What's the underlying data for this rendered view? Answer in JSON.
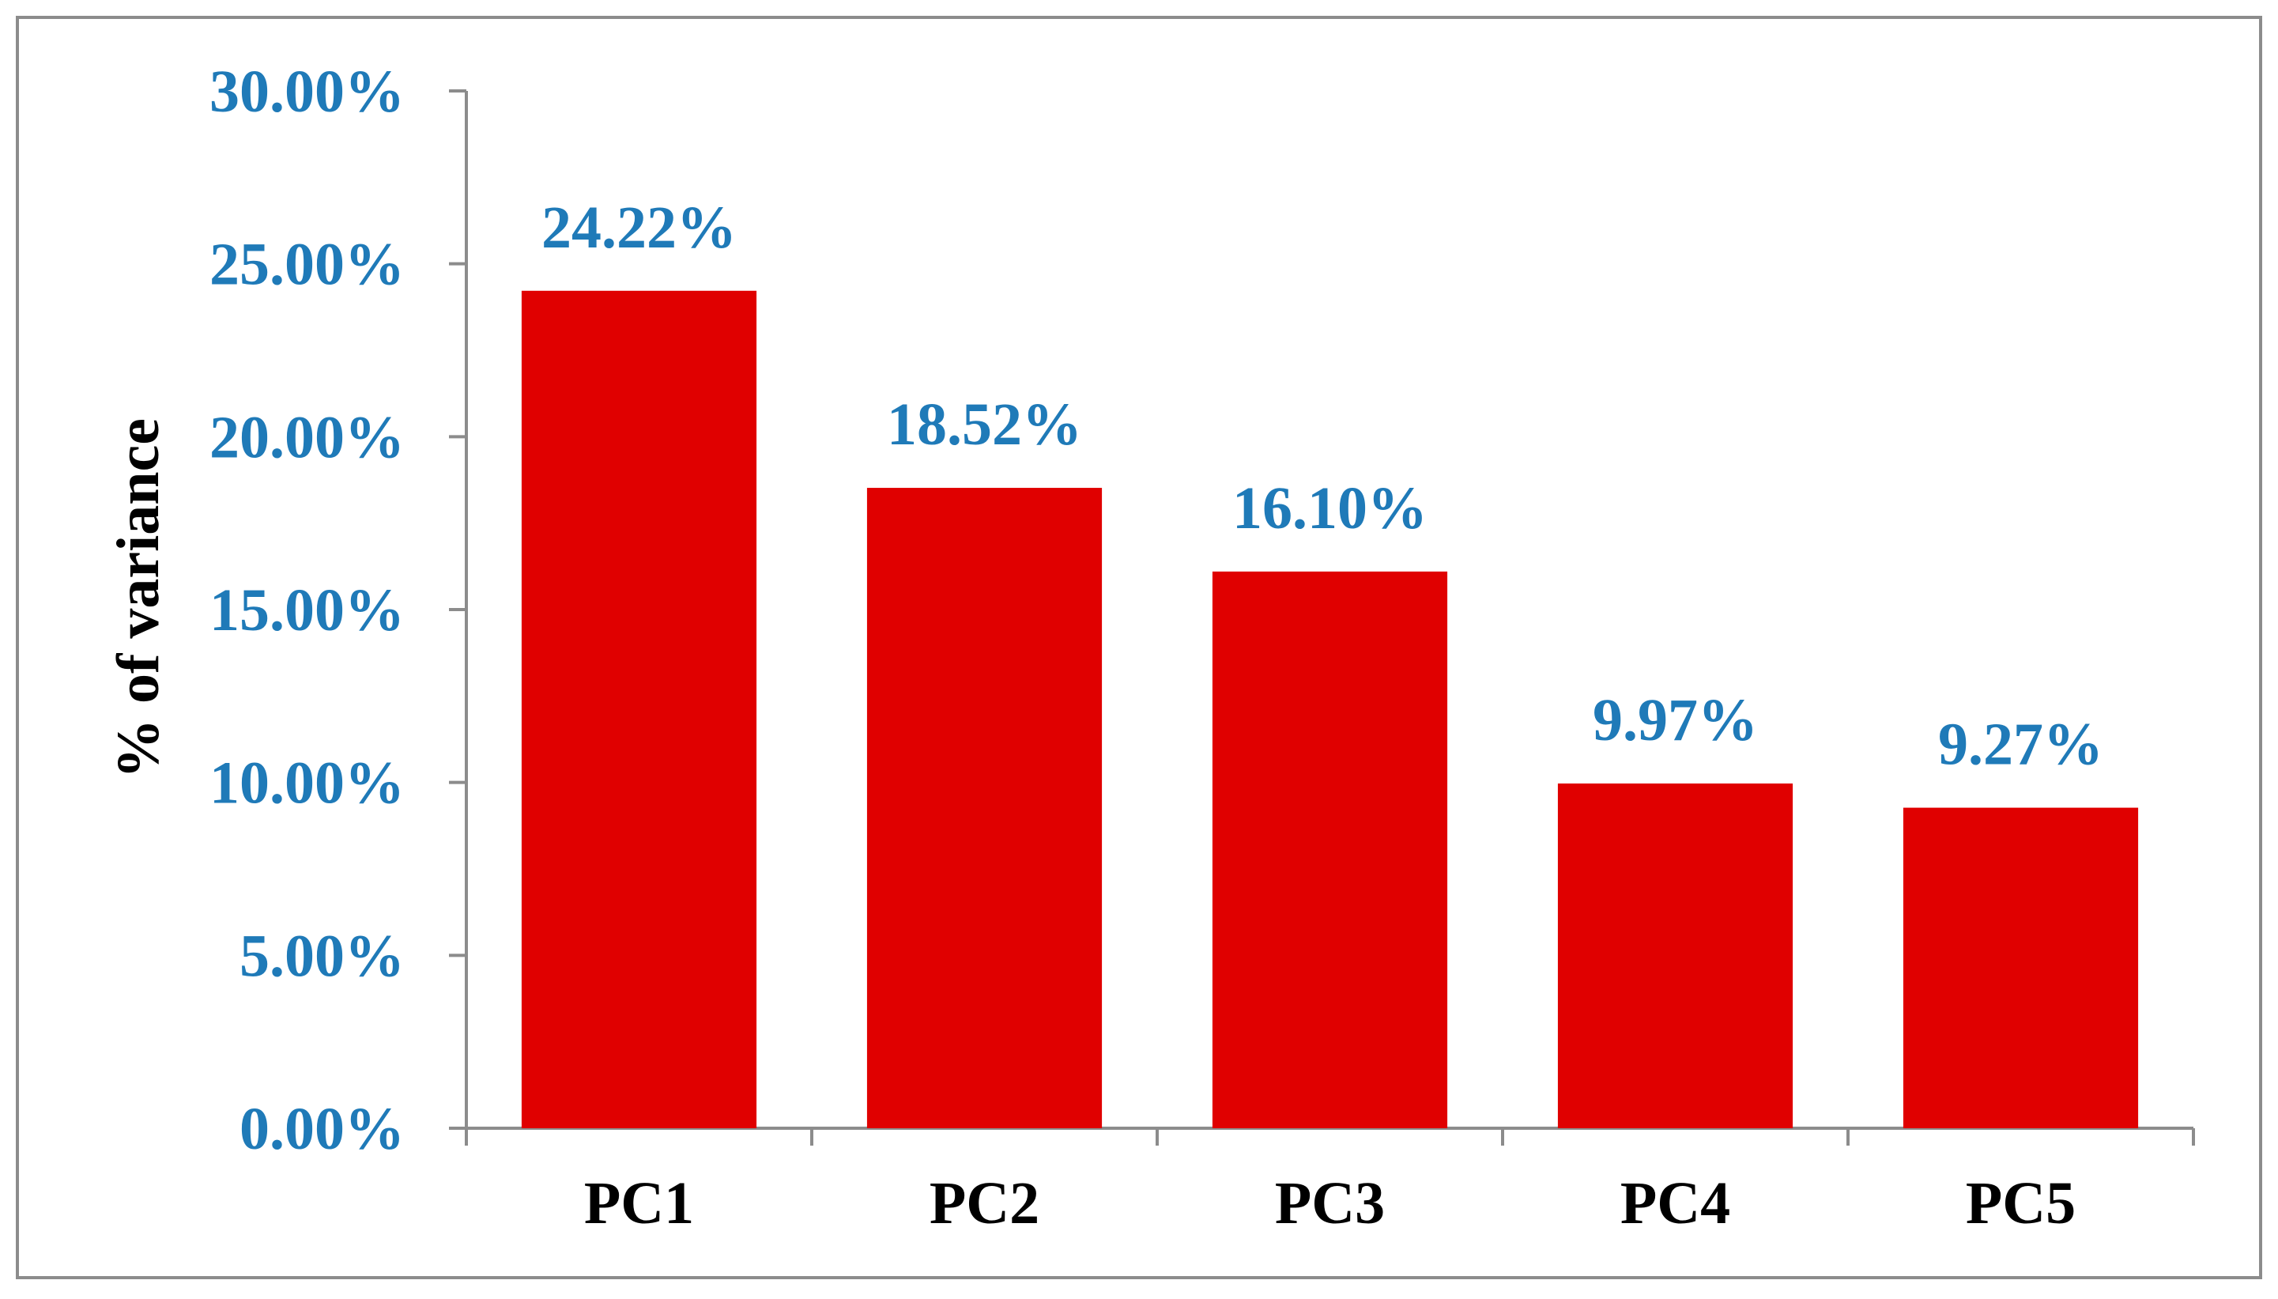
{
  "chart_data": {
    "type": "bar",
    "title": "",
    "xlabel": "",
    "ylabel": "% of variance",
    "categories": [
      "PC1",
      "PC2",
      "PC3",
      "PC4",
      "PC5"
    ],
    "values": [
      24.22,
      18.52,
      16.1,
      9.97,
      9.27
    ],
    "data_labels": [
      "24.22%",
      "18.52%",
      "16.10%",
      "9.97%",
      "9.27%"
    ],
    "ylim": [
      0,
      30
    ],
    "yticks": [
      0,
      5,
      10,
      15,
      20,
      25,
      30
    ],
    "ytick_labels": [
      "0.00%",
      "5.00%",
      "10.00%",
      "15.00%",
      "20.00%",
      "25.00%",
      "30.00%"
    ],
    "grid": false,
    "legend": "none",
    "colors": {
      "bar": "#e00000",
      "tick_label": "#1f7ab8",
      "data_label": "#1f7ab8",
      "axis_label": "#000000",
      "category_label": "#000000",
      "axis_line": "#8c8c8c",
      "border": "#8c8c8c"
    }
  }
}
